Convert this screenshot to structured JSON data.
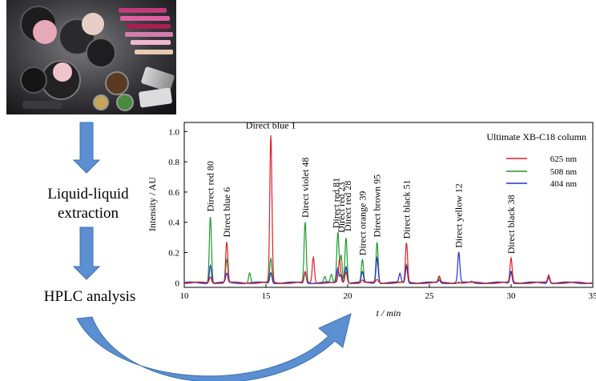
{
  "steps": {
    "extraction": "Liquid-liquid\nextraction",
    "hplc": "HPLC analysis"
  },
  "photo": {
    "subject": "cosmetics products (lipsticks, eyeshadows, powders)"
  },
  "colors": {
    "arrow": "#5b8fd1",
    "red": "#e0202a",
    "green": "#1f9a2a",
    "blue": "#2531c8"
  },
  "chart_data": {
    "type": "line",
    "title": "Ultimate XB-C18 column",
    "xlabel": "t / min",
    "ylabel": "Intensity / AU",
    "xlim": [
      10,
      35
    ],
    "ylim": [
      -0.03,
      1.06
    ],
    "xticks": [
      "10",
      "15",
      "20",
      "25",
      "30",
      "35"
    ],
    "yticks": [
      "0",
      "0.2",
      "0.4",
      "0.6",
      "0.8",
      "1.0"
    ],
    "legend_position": "top-right",
    "series": [
      {
        "name": "625 nm",
        "color": "#e0202a",
        "peaks": [
          [
            11.6,
            0.04
          ],
          [
            12.6,
            0.27
          ],
          [
            15.3,
            0.97
          ],
          [
            17.4,
            0.07
          ],
          [
            17.9,
            0.17
          ],
          [
            19.5,
            0.15
          ],
          [
            19.9,
            0.07
          ],
          [
            20.9,
            0.02
          ],
          [
            21.8,
            0.02
          ],
          [
            23.6,
            0.26
          ],
          [
            25.6,
            0.04
          ],
          [
            26.8,
            0.01
          ],
          [
            30.0,
            0.16
          ],
          [
            32.3,
            0.05
          ]
        ]
      },
      {
        "name": "508 nm",
        "color": "#1f9a2a",
        "peaks": [
          [
            11.6,
            0.44
          ],
          [
            12.6,
            0.15
          ],
          [
            14.0,
            0.07
          ],
          [
            15.3,
            0.16
          ],
          [
            17.4,
            0.4
          ],
          [
            18.6,
            0.04
          ],
          [
            19.0,
            0.05
          ],
          [
            19.4,
            0.33
          ],
          [
            19.6,
            0.18
          ],
          [
            19.9,
            0.3
          ],
          [
            20.9,
            0.15
          ],
          [
            21.8,
            0.27
          ],
          [
            23.6,
            0.12
          ],
          [
            25.6,
            0.03
          ],
          [
            30.0,
            0.07
          ],
          [
            32.3,
            0.04
          ]
        ]
      },
      {
        "name": "404 nm",
        "color": "#2531c8",
        "peaks": [
          [
            11.6,
            0.12
          ],
          [
            12.6,
            0.06
          ],
          [
            15.3,
            0.07
          ],
          [
            17.4,
            0.07
          ],
          [
            19.4,
            0.1
          ],
          [
            19.6,
            0.06
          ],
          [
            19.9,
            0.11
          ],
          [
            20.9,
            0.07
          ],
          [
            21.8,
            0.17
          ],
          [
            23.2,
            0.06
          ],
          [
            23.6,
            0.11
          ],
          [
            25.6,
            0.02
          ],
          [
            26.8,
            0.2
          ],
          [
            27.6,
            0.01
          ],
          [
            30.0,
            0.08
          ],
          [
            32.3,
            0.04
          ]
        ]
      }
    ],
    "annotations": [
      {
        "text": "Direct red 80",
        "x": 11.6,
        "y": 0.46
      },
      {
        "text": "Direct blue 6",
        "x": 12.6,
        "y": 0.29
      },
      {
        "text": "Direct blue 1",
        "x": 15.3,
        "y": 1.01,
        "horizontal": true
      },
      {
        "text": "Direct violet 48",
        "x": 17.4,
        "y": 0.42
      },
      {
        "text": "Direct red 81",
        "x": 19.3,
        "y": 0.35
      },
      {
        "text": "Direct red 23",
        "x": 19.6,
        "y": 0.32
      },
      {
        "text": "Direct red 28",
        "x": 20.0,
        "y": 0.33
      },
      {
        "text": "Direct orange 39",
        "x": 20.9,
        "y": 0.17
      },
      {
        "text": "Direct brown 95",
        "x": 21.8,
        "y": 0.29
      },
      {
        "text": "Direct black 51",
        "x": 23.6,
        "y": 0.28
      },
      {
        "text": "Direct yellow 12",
        "x": 26.8,
        "y": 0.22
      },
      {
        "text": "Direct black 38",
        "x": 30.0,
        "y": 0.18
      }
    ]
  }
}
